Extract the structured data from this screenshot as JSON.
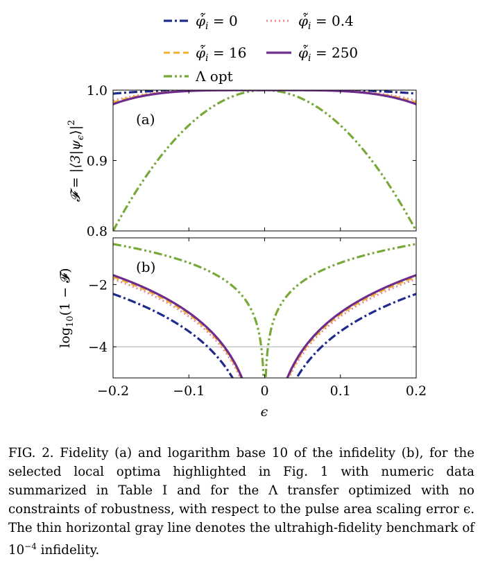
{
  "chart_data": [
    {
      "panel": "(a)",
      "type": "line",
      "xlabel": "ϵ",
      "ylabel": "𝓕 = |⟨3|ψ_ϵ⟩|²",
      "xlim": [
        -0.2,
        0.2
      ],
      "ylim": [
        0.8,
        1.0
      ],
      "xticks": [
        "−0.2",
        "−0.1",
        "0",
        "0.1",
        "0.2"
      ],
      "yticks": [
        "0.8",
        "0.9",
        "1.0"
      ],
      "ytick_values": [
        0.8,
        0.9,
        1.0
      ],
      "grid": false,
      "series_model": "F = 1 - c * |ϵ|^n",
      "series": [
        {
          "name": "φ̇̃_i = 0",
          "color": "#1f2a8c",
          "dash": "dash-dot",
          "c": 3.125,
          "n": 4,
          "points": {
            "x": [
              -0.2,
              -0.1,
              0,
              0.1,
              0.2
            ],
            "y": [
              0.995,
              0.9997,
              1.0,
              0.9997,
              0.995
            ]
          }
        },
        {
          "name": "φ̇̃_i = 0.4",
          "color": "#e88a96",
          "dash": "dotted",
          "c": 9.4,
          "n": 4,
          "points": {
            "x": [
              -0.2,
              -0.1,
              0,
              0.1,
              0.2
            ],
            "y": [
              0.985,
              0.9991,
              1.0,
              0.9991,
              0.985
            ]
          }
        },
        {
          "name": "φ̇̃_i = 16",
          "color": "#f0b030",
          "dash": "dashed",
          "c": 11.0,
          "n": 4,
          "points": {
            "x": [
              -0.2,
              -0.1,
              0,
              0.1,
              0.2
            ],
            "y": [
              0.982,
              0.9989,
              1.0,
              0.9989,
              0.982
            ]
          }
        },
        {
          "name": "φ̇̃_i = 250",
          "color": "#6e2c8c",
          "dash": "solid",
          "c": 12.5,
          "n": 4,
          "points": {
            "x": [
              -0.2,
              -0.1,
              0,
              0.1,
              0.2
            ],
            "y": [
              0.98,
              0.9988,
              1.0,
              0.9988,
              0.98
            ]
          }
        },
        {
          "name": "Λ opt",
          "color": "#78a838",
          "dash": "dash-dot-dot",
          "c": 5.0,
          "n": 2,
          "points": {
            "x": [
              -0.2,
              -0.1,
              0,
              0.1,
              0.2
            ],
            "y": [
              0.8,
              0.95,
              1.0,
              0.95,
              0.8
            ]
          }
        }
      ]
    },
    {
      "panel": "(b)",
      "type": "line",
      "xlabel": "ϵ",
      "ylabel": "log₁₀(1 − 𝓕)",
      "xlim": [
        -0.2,
        0.2
      ],
      "ylim": [
        -5.0,
        -0.5
      ],
      "xticks": [
        "−0.2",
        "−0.1",
        "0",
        "0.1",
        "0.2"
      ],
      "yticks": [
        "−4",
        "−2"
      ],
      "ytick_values": [
        -4,
        -2
      ],
      "benchmark_line": -4,
      "grid": false,
      "series": [
        {
          "name": "φ̇̃_i = 0",
          "points": {
            "x": [
              -0.2,
              -0.1,
              -0.04,
              0.04,
              0.1,
              0.2
            ],
            "y": [
              -2.3,
              -3.5,
              -5.0,
              -5.0,
              -3.5,
              -2.3
            ]
          }
        },
        {
          "name": "φ̇̃_i = 0.4",
          "points": {
            "x": [
              -0.2,
              -0.1,
              -0.035,
              0.035,
              0.1,
              0.2
            ],
            "y": [
              -1.8,
              -3.0,
              -5.0,
              -5.0,
              -3.0,
              -1.8
            ]
          }
        },
        {
          "name": "φ̇̃_i = 16",
          "points": {
            "x": [
              -0.2,
              -0.1,
              -0.034,
              0.034,
              0.1,
              0.2
            ],
            "y": [
              -1.76,
              -2.96,
              -5.0,
              -5.0,
              -2.96,
              -1.76
            ]
          }
        },
        {
          "name": "φ̇̃_i = 250",
          "points": {
            "x": [
              -0.2,
              -0.1,
              -0.032,
              0.032,
              0.1,
              0.2
            ],
            "y": [
              -1.7,
              -2.9,
              -5.0,
              -5.0,
              -2.9,
              -1.7
            ]
          }
        },
        {
          "name": "Λ opt",
          "points": {
            "x": [
              -0.2,
              -0.1,
              -0.01,
              -0.0015,
              0.0015,
              0.01,
              0.1,
              0.2
            ],
            "y": [
              -0.7,
              -1.3,
              -3.3,
              -5.0,
              -5.0,
              -3.3,
              -1.3,
              -0.7
            ]
          }
        }
      ]
    }
  ],
  "legend": {
    "placement": "top-center",
    "entries": [
      {
        "symbol": "φ̇̃",
        "sub": "i",
        "rel": "= 0"
      },
      {
        "symbol": "φ̇̃",
        "sub": "i",
        "rel": "= 0.4"
      },
      {
        "symbol": "φ̇̃",
        "sub": "i",
        "rel": "= 16"
      },
      {
        "symbol": "φ̇̃",
        "sub": "i",
        "rel": "= 250"
      },
      {
        "symbol": "Λ",
        "sub": "",
        "rel": "opt"
      }
    ]
  },
  "axis_text": {
    "top_ylabel_main": "𝓕 = |⟨3|ψ",
    "top_ylabel_sub": "ϵ",
    "top_ylabel_end": "⟩|",
    "top_ylabel_sup": "2",
    "bottom_ylabel_log": "log",
    "bottom_ylabel_sub": "10",
    "bottom_ylabel_rest": "(1 − 𝓕)",
    "xlabel": "ϵ"
  },
  "caption": "FIG. 2.  Fidelity (a) and logarithm base 10 of the infidelity (b), for the selected local optima highlighted in Fig. 1 with numeric data summarized in Table I and for the Λ transfer optimized with no constraints of robustness, with respect to the pulse area scaling error ϵ. The thin horizontal gray line denotes the ultrahigh-fidelity benchmark of 10",
  "caption_sup": "−4",
  "caption_end": " infidelity."
}
